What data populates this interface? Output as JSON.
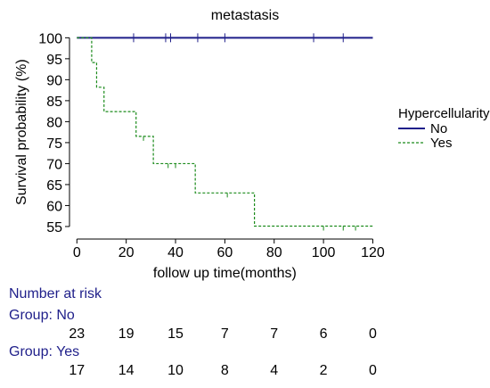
{
  "chart_data": {
    "type": "line",
    "title": "metastasis",
    "xlabel": "follow up time(months)",
    "ylabel": "Survival probability (%)",
    "xlim": [
      -3,
      122
    ],
    "ylim": [
      53.5,
      100.5
    ],
    "x_ticks": [
      0,
      20,
      40,
      60,
      80,
      100,
      120
    ],
    "y_ticks": [
      55,
      60,
      65,
      70,
      75,
      80,
      85,
      90,
      95,
      100
    ],
    "legend": {
      "title": "Hypercellularity",
      "placement": "right"
    },
    "series": [
      {
        "name": "No",
        "color": "#1f1f8a",
        "style": "solid",
        "x": [
          0,
          120
        ],
        "y": [
          100,
          100
        ],
        "censor_x": [
          23,
          36,
          38,
          49,
          60,
          96,
          108
        ]
      },
      {
        "name": "Yes",
        "color": "#1a8a1a",
        "style": "dashed",
        "x": [
          0,
          6,
          8,
          11,
          24,
          28,
          31,
          48,
          72,
          120
        ],
        "y": [
          100,
          94.1,
          88.2,
          82.4,
          76.5,
          76.5,
          70.0,
          63.0,
          55.1,
          55.1
        ],
        "censor_x": [
          27,
          37,
          40,
          61,
          100,
          108,
          113
        ]
      }
    ]
  },
  "risk_table": {
    "title": "Number at risk",
    "times": [
      0,
      20,
      40,
      60,
      80,
      100,
      120
    ],
    "groups": [
      {
        "label": "Group: No",
        "values": [
          "23",
          "19",
          "15",
          "7",
          "7",
          "6",
          "0"
        ]
      },
      {
        "label": "Group: Yes",
        "values": [
          "17",
          "14",
          "10",
          "8",
          "4",
          "2",
          "0"
        ]
      }
    ]
  }
}
